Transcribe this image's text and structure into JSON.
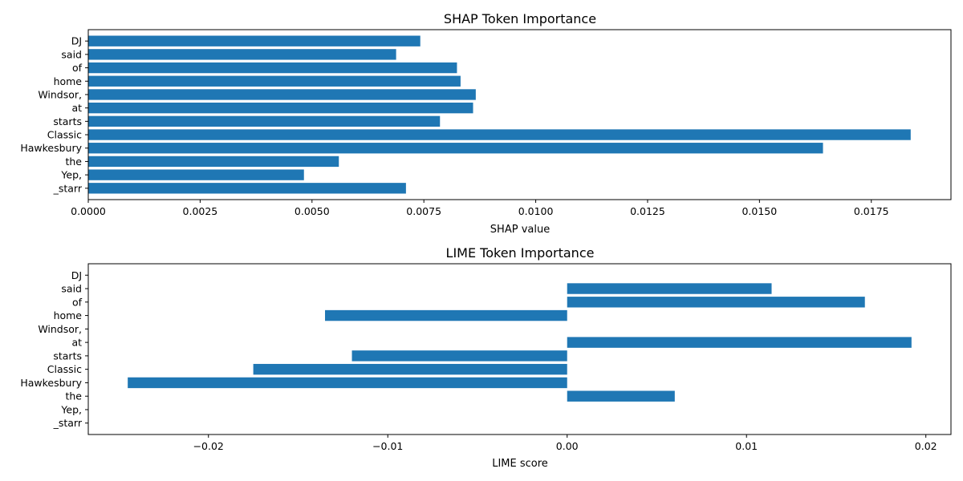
{
  "chart_data": [
    {
      "type": "bar",
      "orientation": "horizontal",
      "title": "SHAP Token Importance",
      "xlabel": "SHAP value",
      "ylabel": "",
      "categories": [
        "DJ",
        "said",
        "of",
        "home",
        "Windsor,",
        "at",
        "starts",
        "Classic",
        "Hawkesbury",
        "the",
        "Yep,",
        "_starr"
      ],
      "values": [
        0.00742,
        0.00688,
        0.00824,
        0.00832,
        0.00866,
        0.0086,
        0.00786,
        0.01838,
        0.01642,
        0.0056,
        0.00482,
        0.0071
      ],
      "xlim": [
        0.0,
        0.01928
      ],
      "xticks": [
        0.0,
        0.0025,
        0.005,
        0.0075,
        0.01,
        0.0125,
        0.015,
        0.0175
      ],
      "xtick_labels": [
        "0.0000",
        "0.0025",
        "0.0050",
        "0.0075",
        "0.0100",
        "0.0125",
        "0.0150",
        "0.0175"
      ],
      "color": "#1f77b4",
      "grid": false,
      "legend": "none"
    },
    {
      "type": "bar",
      "orientation": "horizontal",
      "title": "LIME Token Importance",
      "xlabel": "LIME score",
      "ylabel": "",
      "categories": [
        "DJ",
        "said",
        "of",
        "home",
        "Windsor,",
        "at",
        "starts",
        "Classic",
        "Hawkesbury",
        "the",
        "Yep,",
        "_starr"
      ],
      "values": [
        0.0,
        0.0114,
        0.0166,
        -0.0135,
        0.0,
        0.0192,
        -0.012,
        -0.0175,
        -0.0245,
        0.006,
        0.0,
        0.0
      ],
      "xlim": [
        -0.0267,
        0.0214
      ],
      "xticks": [
        -0.02,
        -0.01,
        0.0,
        0.01,
        0.02
      ],
      "xtick_labels": [
        "−0.02",
        "−0.01",
        "0.00",
        "0.01",
        "0.02"
      ],
      "color": "#1f77b4",
      "grid": false,
      "legend": "none"
    }
  ]
}
